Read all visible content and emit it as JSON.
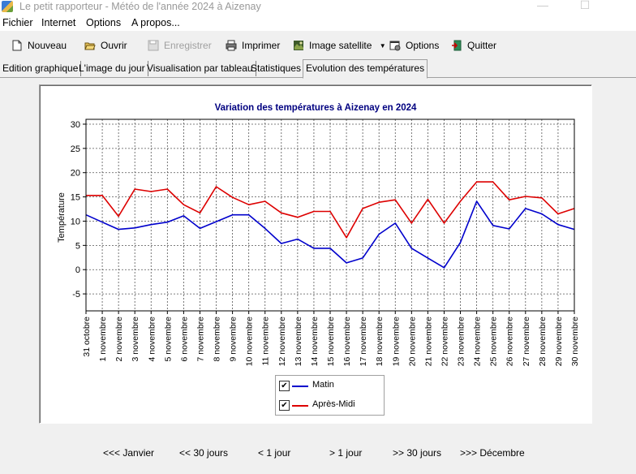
{
  "window": {
    "title": "Le petit rapporteur - Météo de l'année 2024 à Aizenay"
  },
  "menu": [
    "Fichier",
    "Internet",
    "Options",
    "A propos..."
  ],
  "toolbar": {
    "nouveau": "Nouveau",
    "ouvrir": "Ouvrir",
    "enregistrer": "Enregistrer",
    "imprimer": "Imprimer",
    "image_satellite": "Image satellite",
    "options": "Options",
    "quitter": "Quitter"
  },
  "tabs": [
    "Edition graphique",
    "L'image du jour",
    "Visualisation par tableau",
    "Statistiques",
    "Evolution des températures"
  ],
  "active_tab": 4,
  "legend": {
    "matin": "Matin",
    "apres_midi": "Après-Midi",
    "matin_checked": true,
    "apres_midi_checked": true
  },
  "colors": {
    "matin": "#0000cc",
    "apres_midi": "#dd0000",
    "title": "#000080"
  },
  "nav": {
    "janvier": "<<< Janvier",
    "minus30": "<< 30 jours",
    "minus1": "< 1 jour",
    "plus1": "> 1 jour",
    "plus30": ">> 30 jours",
    "decembre": ">>> Décembre"
  },
  "chart_data": {
    "type": "line",
    "title": "Variation des températures à Aizenay en 2024",
    "ylabel": "Température",
    "xlabel": "",
    "ylim": [
      -8.5,
      31
    ],
    "yticks": [
      -5,
      0,
      5,
      10,
      15,
      20,
      25,
      30
    ],
    "grid": true,
    "legend_position": "bottom",
    "categories": [
      "31 octobre",
      "1 novembre",
      "2 novembre",
      "3 novembre",
      "4 novembre",
      "5 novembre",
      "6 novembre",
      "7 novembre",
      "8 novembre",
      "9 novembre",
      "10 novembre",
      "11 novembre",
      "12 novembre",
      "13 novembre",
      "14 novembre",
      "15 novembre",
      "16 novembre",
      "17 novembre",
      "18 novembre",
      "19 novembre",
      "20 novembre",
      "21 novembre",
      "22 novembre",
      "23 novembre",
      "24 novembre",
      "25 novembre",
      "26 novembre",
      "27 novembre",
      "28 novembre",
      "29 novembre",
      "30 novembre"
    ],
    "series": [
      {
        "name": "Matin",
        "color": "#0000cc",
        "values": [
          11.3,
          9.8,
          8.3,
          8.6,
          9.3,
          9.8,
          11.1,
          8.5,
          9.9,
          11.3,
          11.3,
          8.5,
          5.4,
          6.3,
          4.4,
          4.4,
          1.4,
          2.4,
          7.3,
          9.6,
          4.4,
          2.4,
          0.4,
          5.6,
          14.1,
          9.1,
          8.4,
          12.6,
          11.5,
          9.3,
          8.3
        ]
      },
      {
        "name": "Après-Midi",
        "color": "#dd0000",
        "values": [
          15.3,
          15.3,
          11.0,
          16.6,
          16.1,
          16.6,
          13.4,
          11.7,
          17.1,
          14.9,
          13.4,
          14.1,
          11.7,
          10.8,
          12.0,
          12.0,
          6.6,
          12.6,
          13.9,
          14.4,
          9.6,
          14.5,
          9.6,
          14.1,
          18.1,
          18.1,
          14.4,
          15.1,
          14.8,
          11.5,
          12.6
        ]
      }
    ]
  }
}
